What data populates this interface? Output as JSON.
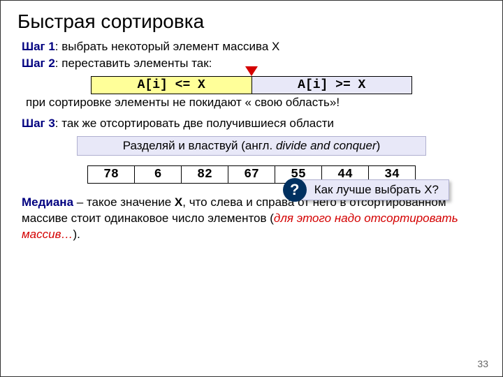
{
  "title": "Быстрая сортировка",
  "step1": {
    "label": "Шаг 1",
    "text": ": выбрать некоторый элемент массива X"
  },
  "step2": {
    "label": "Шаг 2",
    "text": ": переставить элементы так:"
  },
  "partition": {
    "left": "A[i] <= X",
    "right": "A[i] >= X"
  },
  "note": "при сортировке элементы не покидают « свою область»!",
  "step3": {
    "label": "Шаг 3",
    "text": ": так же отсортировать две получившиеся области"
  },
  "divide": {
    "prefix": "Разделяй и властвуй (англ. ",
    "italic": "divide and conquer",
    "suffix": ")"
  },
  "array": [
    "78",
    "6",
    "82",
    "67",
    "55",
    "44",
    "34"
  ],
  "callout": {
    "q": "?",
    "text": "Как лучше выбрать X?"
  },
  "def": {
    "term": "Медиана",
    "t1": " – такое значение ",
    "x": "X",
    "t2": ", что слева и справа от него в отсортированном массиве стоит одинаковое число элементов (",
    "red": "для этого надо отсортировать массив…",
    "t3": ")."
  },
  "pagenum": "33",
  "colors": {
    "accent": "#000080",
    "red": "#d40000",
    "yellow": "#ffff99",
    "lavender": "#e8e8f8",
    "circle": "#003060"
  }
}
